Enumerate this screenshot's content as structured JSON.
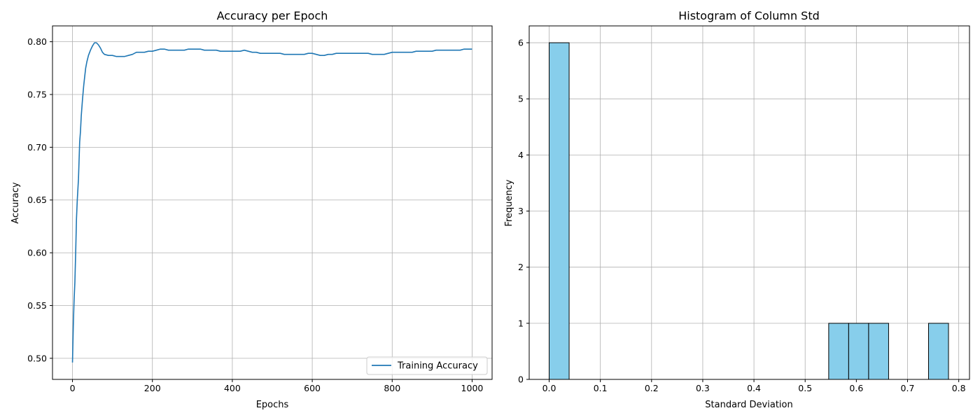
{
  "chart_data": [
    {
      "type": "line",
      "title": "Accuracy per Epoch",
      "xlabel": "Epochs",
      "ylabel": "Accuracy",
      "xlim": [
        -50,
        1050
      ],
      "ylim": [
        0.48,
        0.815
      ],
      "xticks": [
        0,
        200,
        400,
        600,
        800,
        1000
      ],
      "yticks": [
        0.5,
        0.55,
        0.6,
        0.65,
        0.7,
        0.75,
        0.8
      ],
      "ytick_labels": [
        "0.50",
        "0.55",
        "0.60",
        "0.65",
        "0.70",
        "0.75",
        "0.80"
      ],
      "grid": true,
      "legend_position": "lower-right",
      "series": [
        {
          "name": "Training Accuracy",
          "color": "#1f77b4",
          "x": [
            0,
            2,
            4,
            6,
            8,
            10,
            12,
            15,
            18,
            20,
            22,
            25,
            28,
            30,
            33,
            36,
            40,
            45,
            50,
            55,
            60,
            65,
            70,
            75,
            80,
            90,
            100,
            110,
            120,
            130,
            140,
            150,
            160,
            170,
            180,
            190,
            200,
            210,
            220,
            230,
            240,
            250,
            260,
            270,
            280,
            290,
            300,
            310,
            320,
            330,
            340,
            350,
            360,
            370,
            380,
            390,
            400,
            410,
            420,
            430,
            440,
            450,
            460,
            470,
            480,
            490,
            500,
            510,
            520,
            530,
            540,
            550,
            560,
            570,
            580,
            590,
            600,
            610,
            620,
            630,
            640,
            650,
            660,
            670,
            680,
            690,
            700,
            710,
            720,
            730,
            740,
            750,
            760,
            770,
            780,
            790,
            800,
            810,
            820,
            830,
            840,
            850,
            860,
            870,
            880,
            890,
            900,
            910,
            920,
            930,
            940,
            950,
            960,
            970,
            980,
            990,
            1000
          ],
          "y": [
            0.496,
            0.53,
            0.555,
            0.572,
            0.6,
            0.632,
            0.65,
            0.67,
            0.705,
            0.715,
            0.73,
            0.745,
            0.758,
            0.765,
            0.775,
            0.781,
            0.787,
            0.792,
            0.796,
            0.799,
            0.799,
            0.797,
            0.794,
            0.79,
            0.788,
            0.787,
            0.787,
            0.786,
            0.786,
            0.786,
            0.787,
            0.788,
            0.79,
            0.79,
            0.79,
            0.791,
            0.791,
            0.792,
            0.793,
            0.793,
            0.792,
            0.792,
            0.792,
            0.792,
            0.792,
            0.793,
            0.793,
            0.793,
            0.793,
            0.792,
            0.792,
            0.792,
            0.792,
            0.791,
            0.791,
            0.791,
            0.791,
            0.791,
            0.791,
            0.792,
            0.791,
            0.79,
            0.79,
            0.789,
            0.789,
            0.789,
            0.789,
            0.789,
            0.789,
            0.788,
            0.788,
            0.788,
            0.788,
            0.788,
            0.788,
            0.789,
            0.789,
            0.788,
            0.787,
            0.787,
            0.788,
            0.788,
            0.789,
            0.789,
            0.789,
            0.789,
            0.789,
            0.789,
            0.789,
            0.789,
            0.789,
            0.788,
            0.788,
            0.788,
            0.788,
            0.789,
            0.79,
            0.79,
            0.79,
            0.79,
            0.79,
            0.79,
            0.791,
            0.791,
            0.791,
            0.791,
            0.791,
            0.792,
            0.792,
            0.792,
            0.792,
            0.792,
            0.792,
            0.792,
            0.793,
            0.793,
            0.793
          ]
        }
      ]
    },
    {
      "type": "bar",
      "title": "Histogram of Column Std",
      "xlabel": "Standard Deviation",
      "ylabel": "Frequency",
      "xlim": [
        -0.039,
        0.821
      ],
      "ylim": [
        0,
        6.3
      ],
      "xticks": [
        0.0,
        0.1,
        0.2,
        0.3,
        0.4,
        0.5,
        0.6,
        0.7,
        0.8
      ],
      "xtick_labels": [
        "0.0",
        "0.1",
        "0.2",
        "0.3",
        "0.4",
        "0.5",
        "0.6",
        "0.7",
        "0.8"
      ],
      "yticks": [
        0,
        1,
        2,
        3,
        4,
        5,
        6
      ],
      "grid": true,
      "bar_color": "#87ceeb",
      "edge_color": "#000000",
      "bins": [
        {
          "x0": 0.0,
          "x1": 0.039,
          "count": 6
        },
        {
          "x0": 0.039,
          "x1": 0.078,
          "count": 0
        },
        {
          "x0": 0.078,
          "x1": 0.117,
          "count": 0
        },
        {
          "x0": 0.117,
          "x1": 0.156,
          "count": 0
        },
        {
          "x0": 0.156,
          "x1": 0.195,
          "count": 0
        },
        {
          "x0": 0.195,
          "x1": 0.234,
          "count": 0
        },
        {
          "x0": 0.234,
          "x1": 0.273,
          "count": 0
        },
        {
          "x0": 0.273,
          "x1": 0.312,
          "count": 0
        },
        {
          "x0": 0.312,
          "x1": 0.351,
          "count": 0
        },
        {
          "x0": 0.351,
          "x1": 0.39,
          "count": 0
        },
        {
          "x0": 0.39,
          "x1": 0.429,
          "count": 0
        },
        {
          "x0": 0.429,
          "x1": 0.468,
          "count": 0
        },
        {
          "x0": 0.468,
          "x1": 0.507,
          "count": 0
        },
        {
          "x0": 0.507,
          "x1": 0.546,
          "count": 0
        },
        {
          "x0": 0.546,
          "x1": 0.585,
          "count": 1
        },
        {
          "x0": 0.585,
          "x1": 0.624,
          "count": 1
        },
        {
          "x0": 0.624,
          "x1": 0.663,
          "count": 1
        },
        {
          "x0": 0.663,
          "x1": 0.702,
          "count": 0
        },
        {
          "x0": 0.702,
          "x1": 0.741,
          "count": 0
        },
        {
          "x0": 0.741,
          "x1": 0.78,
          "count": 1
        }
      ]
    }
  ]
}
